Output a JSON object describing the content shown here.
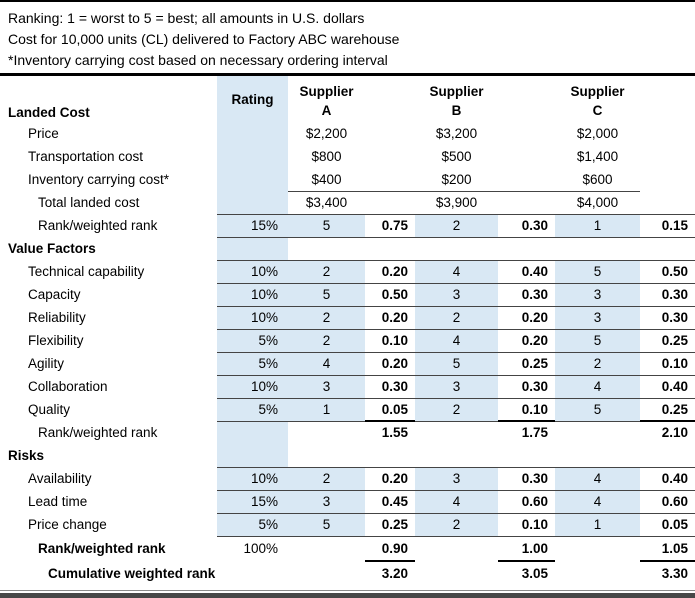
{
  "notes": {
    "ranking": "Ranking: 1 = worst to 5 = best; all amounts in U.S. dollars",
    "cost": "Cost for 10,000 units (CL) delivered to Factory ABC warehouse",
    "inventory": "*Inventory carrying cost based on necessary ordering interval"
  },
  "header": {
    "landed_cost": "Landed Cost",
    "rating": "Rating",
    "suppliers": [
      {
        "word": "Supplier",
        "letter": "A"
      },
      {
        "word": "Supplier",
        "letter": "B"
      },
      {
        "word": "Supplier",
        "letter": "C"
      }
    ]
  },
  "rows": [
    {
      "label": "Price",
      "rating": "",
      "a": "$2,200",
      "wa": "",
      "b": "$3,200",
      "wb": "",
      "c": "$2,000",
      "wc": ""
    },
    {
      "label": "Transportation cost",
      "rating": "",
      "a": "$800",
      "wa": "",
      "b": "$500",
      "wb": "",
      "c": "$1,400",
      "wc": ""
    },
    {
      "label": "Inventory carrying cost*",
      "rating": "",
      "a": "$400",
      "wa": "",
      "b": "$200",
      "wb": "",
      "c": "$600",
      "wc": ""
    },
    {
      "label": "Total landed cost",
      "rating": "",
      "a": "$3,400",
      "wa": "",
      "b": "$3,900",
      "wb": "",
      "c": "$4,000",
      "wc": ""
    },
    {
      "label": "Rank/weighted rank",
      "rating": "15%",
      "a": "5",
      "wa": "0.75",
      "b": "2",
      "wb": "0.30",
      "c": "1",
      "wc": "0.15"
    },
    {
      "label": "Value Factors",
      "rating": "",
      "a": "",
      "wa": "",
      "b": "",
      "wb": "",
      "c": "",
      "wc": ""
    },
    {
      "label": "Technical capability",
      "rating": "10%",
      "a": "2",
      "wa": "0.20",
      "b": "4",
      "wb": "0.40",
      "c": "5",
      "wc": "0.50"
    },
    {
      "label": "Capacity",
      "rating": "10%",
      "a": "5",
      "wa": "0.50",
      "b": "3",
      "wb": "0.30",
      "c": "3",
      "wc": "0.30"
    },
    {
      "label": "Reliability",
      "rating": "10%",
      "a": "2",
      "wa": "0.20",
      "b": "2",
      "wb": "0.20",
      "c": "3",
      "wc": "0.30"
    },
    {
      "label": "Flexibility",
      "rating": "5%",
      "a": "2",
      "wa": "0.10",
      "b": "4",
      "wb": "0.20",
      "c": "5",
      "wc": "0.25"
    },
    {
      "label": "Agility",
      "rating": "5%",
      "a": "4",
      "wa": "0.20",
      "b": "5",
      "wb": "0.25",
      "c": "2",
      "wc": "0.10"
    },
    {
      "label": "Collaboration",
      "rating": "10%",
      "a": "3",
      "wa": "0.30",
      "b": "3",
      "wb": "0.30",
      "c": "4",
      "wc": "0.40"
    },
    {
      "label": "Quality",
      "rating": "5%",
      "a": "1",
      "wa": "0.05",
      "b": "2",
      "wb": "0.10",
      "c": "5",
      "wc": "0.25"
    },
    {
      "label": "Rank/weighted rank",
      "rating": "",
      "a": "",
      "wa": "1.55",
      "b": "",
      "wb": "1.75",
      "c": "",
      "wc": "2.10"
    },
    {
      "label": "Risks",
      "rating": "",
      "a": "",
      "wa": "",
      "b": "",
      "wb": "",
      "c": "",
      "wc": ""
    },
    {
      "label": "Availability",
      "rating": "10%",
      "a": "2",
      "wa": "0.20",
      "b": "3",
      "wb": "0.30",
      "c": "4",
      "wc": "0.40"
    },
    {
      "label": "Lead time",
      "rating": "15%",
      "a": "3",
      "wa": "0.45",
      "b": "4",
      "wb": "0.60",
      "c": "4",
      "wc": "0.60"
    },
    {
      "label": "Price change",
      "rating": "5%",
      "a": "5",
      "wa": "0.25",
      "b": "2",
      "wb": "0.10",
      "c": "1",
      "wc": "0.05"
    },
    {
      "label": "Rank/weighted rank",
      "rating": "100%",
      "a": "",
      "wa": "0.90",
      "b": "",
      "wb": "1.00",
      "c": "",
      "wc": "1.05"
    },
    {
      "label": "Cumulative weighted rank",
      "rating": "",
      "a": "",
      "wa": "3.20",
      "b": "",
      "wb": "3.05",
      "c": "",
      "wc": "3.30"
    }
  ],
  "colors": {
    "highlight_blue": "#d9e8f4",
    "border_black": "#000000",
    "thin_line": "#444444"
  }
}
